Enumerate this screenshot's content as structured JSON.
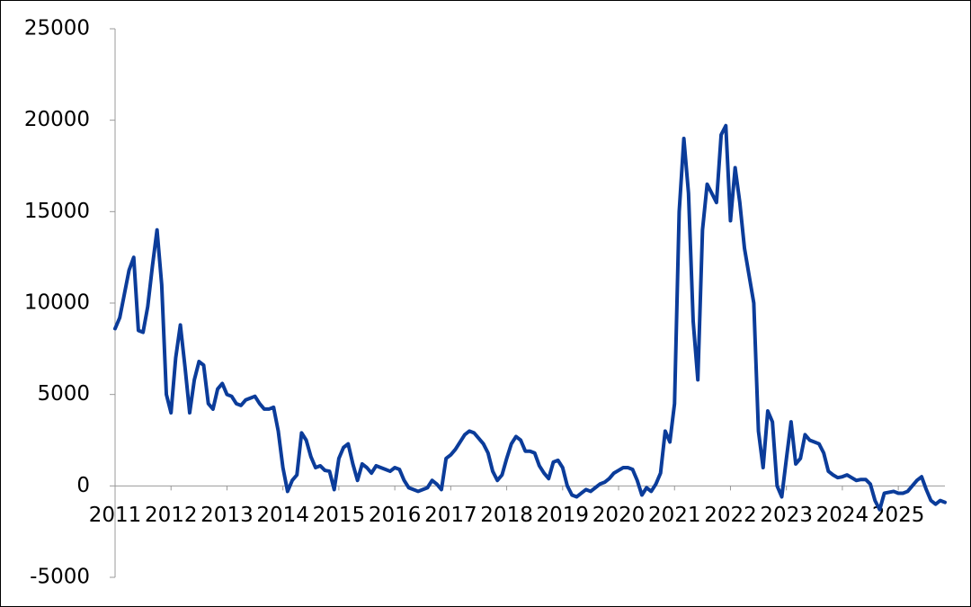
{
  "chart_data": {
    "type": "line",
    "categories": [
      "2011",
      null,
      null,
      null,
      null,
      null,
      null,
      null,
      null,
      null,
      null,
      null,
      "2012",
      null,
      null,
      null,
      null,
      null,
      null,
      null,
      null,
      null,
      null,
      null,
      "2013",
      null,
      null,
      null,
      null,
      null,
      null,
      null,
      null,
      null,
      null,
      null,
      "2014",
      null,
      null,
      null,
      null,
      null,
      null,
      null,
      null,
      null,
      null,
      null,
      "2015",
      null,
      null,
      null,
      null,
      null,
      null,
      null,
      null,
      null,
      null,
      null,
      "2016",
      null,
      null,
      null,
      null,
      null,
      null,
      null,
      null,
      null,
      null,
      null,
      "2017",
      null,
      null,
      null,
      null,
      null,
      null,
      null,
      null,
      null,
      null,
      null,
      "2018",
      null,
      null,
      null,
      null,
      null,
      null,
      null,
      null,
      null,
      null,
      null,
      "2019",
      null,
      null,
      null,
      null,
      null,
      null,
      null,
      null,
      null,
      null,
      null,
      "2020",
      null,
      null,
      null,
      null,
      null,
      null,
      null,
      null,
      null,
      null,
      null,
      "2021",
      null,
      null,
      null,
      null,
      null,
      null,
      null,
      null,
      null,
      null,
      null,
      "2022",
      null,
      null,
      null,
      null,
      null,
      null,
      null,
      null,
      null,
      null,
      null,
      "2023",
      null,
      null,
      null,
      null,
      null,
      null,
      null,
      null,
      null,
      null,
      null,
      "2024",
      null,
      null,
      null,
      null,
      null,
      null,
      null,
      null,
      null,
      null,
      null,
      "2025",
      null,
      null,
      null,
      null,
      null,
      null,
      null,
      null,
      null,
      null
    ],
    "values": [
      8600,
      9200,
      10500,
      11800,
      12500,
      8500,
      8400,
      9800,
      12000,
      14000,
      11000,
      5000,
      4000,
      7000,
      8800,
      6500,
      4000,
      5800,
      6800,
      6600,
      4500,
      4200,
      5300,
      5600,
      5000,
      4900,
      4500,
      4400,
      4700,
      4800,
      4900,
      4500,
      4200,
      4200,
      4300,
      3000,
      1000,
      -300,
      300,
      600,
      2900,
      2500,
      1600,
      1000,
      1100,
      850,
      800,
      -200,
      1500,
      2100,
      2300,
      1200,
      300,
      1200,
      1000,
      700,
      1100,
      1000,
      900,
      800,
      1000,
      900,
      300,
      -100,
      -200,
      -300,
      -200,
      -100,
      300,
      100,
      -200,
      1500,
      1700,
      2000,
      2400,
      2800,
      3000,
      2900,
      2600,
      2300,
      1800,
      800,
      300,
      600,
      1500,
      2300,
      2700,
      2500,
      1900,
      1900,
      1800,
      1100,
      700,
      400,
      1300,
      1400,
      1000,
      0,
      -500,
      -600,
      -400,
      -200,
      -300,
      -100,
      100,
      200,
      400,
      700,
      850,
      1000,
      1000,
      900,
      300,
      -500,
      -100,
      -300,
      100,
      700,
      3000,
      2400,
      4500,
      15000,
      19000,
      16000,
      9000,
      5800,
      14000,
      16500,
      16000,
      15500,
      19200,
      19700,
      14500,
      17400,
      15500,
      13000,
      11500,
      10000,
      3000,
      1000,
      4100,
      3500,
      0,
      -600,
      1500,
      3500,
      1200,
      1500,
      2800,
      2500,
      2400,
      2300,
      1800,
      800,
      600,
      450,
      500,
      600,
      450,
      300,
      350,
      350,
      100,
      -800,
      -1300,
      -400,
      -350,
      -300,
      -400,
      -400,
      -300,
      0,
      300,
      500,
      -200,
      -800,
      -1000,
      -800,
      -900
    ],
    "color": "#0b3c9a",
    "ylim": [
      -5000,
      25000
    ],
    "yticks": [
      -5000,
      0,
      5000,
      10000,
      15000,
      20000,
      25000
    ]
  }
}
